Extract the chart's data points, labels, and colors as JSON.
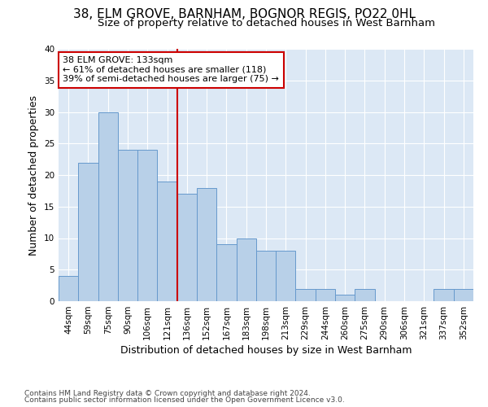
{
  "title_line1": "38, ELM GROVE, BARNHAM, BOGNOR REGIS, PO22 0HL",
  "title_line2": "Size of property relative to detached houses in West Barnham",
  "xlabel": "Distribution of detached houses by size in West Barnham",
  "ylabel": "Number of detached properties",
  "categories": [
    "44sqm",
    "59sqm",
    "75sqm",
    "90sqm",
    "106sqm",
    "121sqm",
    "136sqm",
    "152sqm",
    "167sqm",
    "183sqm",
    "198sqm",
    "213sqm",
    "229sqm",
    "244sqm",
    "260sqm",
    "275sqm",
    "290sqm",
    "306sqm",
    "321sqm",
    "337sqm",
    "352sqm"
  ],
  "values": [
    4,
    22,
    30,
    24,
    24,
    19,
    17,
    18,
    9,
    10,
    8,
    8,
    2,
    2,
    1,
    2,
    0,
    0,
    0,
    2,
    2
  ],
  "bar_color": "#b8d0e8",
  "bar_edge_color": "#6699cc",
  "red_line_index": 6,
  "red_line_color": "#cc0000",
  "annotation_box_color": "#cc0000",
  "annotation_lines": [
    "38 ELM GROVE: 133sqm",
    "← 61% of detached houses are smaller (118)",
    "39% of semi-detached houses are larger (75) →"
  ],
  "ylim": [
    0,
    40
  ],
  "yticks": [
    0,
    5,
    10,
    15,
    20,
    25,
    30,
    35,
    40
  ],
  "background_color": "#dce8f5",
  "grid_color": "#ffffff",
  "footer_line1": "Contains HM Land Registry data © Crown copyright and database right 2024.",
  "footer_line2": "Contains public sector information licensed under the Open Government Licence v3.0.",
  "title_fontsize": 11,
  "subtitle_fontsize": 9.5,
  "axis_label_fontsize": 9,
  "tick_fontsize": 7.5,
  "annotation_fontsize": 8,
  "footer_fontsize": 6.5
}
